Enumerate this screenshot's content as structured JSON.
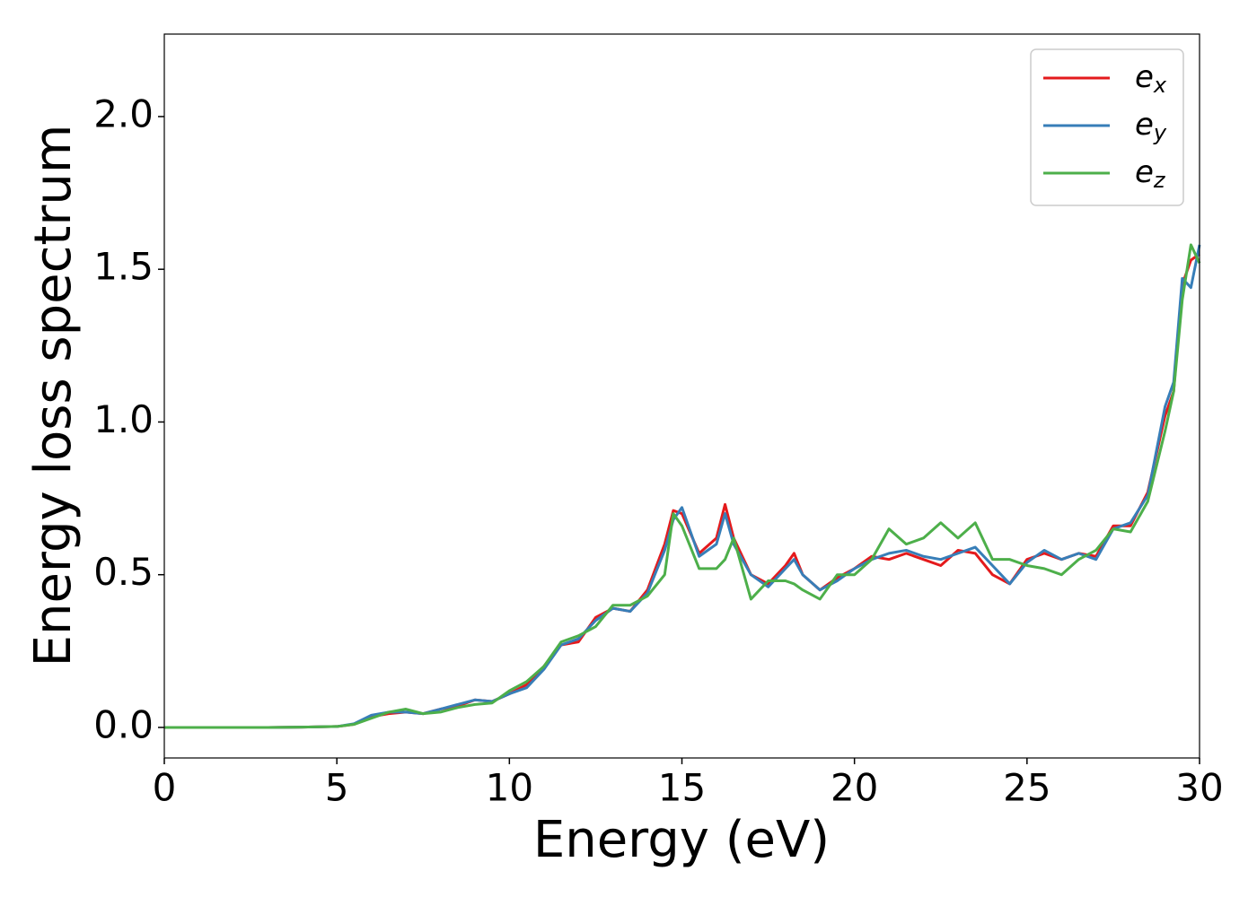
{
  "chart_data": {
    "type": "line",
    "xlabel": "Energy (eV)",
    "ylabel": "Energy loss spectrum",
    "xlim": [
      0,
      30
    ],
    "ylim": [
      -0.1,
      2.27
    ],
    "xticks": [
      0,
      5,
      10,
      15,
      20,
      25,
      30
    ],
    "yticks": [
      {
        "value": 0,
        "label": "0.0"
      },
      0.5,
      {
        "value": 1,
        "label": "1.0"
      },
      1.5,
      {
        "value": 2,
        "label": "2.0"
      }
    ],
    "legend": "upper right",
    "x": [
      0,
      1,
      2,
      3,
      4,
      4.5,
      5,
      5.5,
      6,
      6.5,
      7,
      7.5,
      8,
      8.5,
      9,
      9.5,
      10,
      10.5,
      11,
      11.5,
      12,
      12.5,
      13,
      13.5,
      14,
      14.5,
      14.75,
      15,
      15.5,
      16,
      16.25,
      16.5,
      17,
      17.5,
      18,
      18.25,
      18.5,
      19,
      19.5,
      20,
      20.5,
      21,
      21.5,
      22,
      22.5,
      23,
      23.5,
      24,
      24.5,
      25,
      25.5,
      26,
      26.5,
      27,
      27.5,
      28,
      28.5,
      29,
      29.25,
      29.5,
      29.75,
      30
    ],
    "series": [
      {
        "name": "e_x",
        "color": "#e41a1c",
        "values": [
          0,
          0,
          0,
          0,
          0.001,
          0.002,
          0.003,
          0.01,
          0.035,
          0.045,
          0.05,
          0.045,
          0.06,
          0.07,
          0.09,
          0.085,
          0.11,
          0.14,
          0.2,
          0.27,
          0.28,
          0.36,
          0.39,
          0.38,
          0.45,
          0.6,
          0.71,
          0.7,
          0.57,
          0.62,
          0.73,
          0.62,
          0.5,
          0.47,
          0.53,
          0.57,
          0.5,
          0.45,
          0.49,
          0.52,
          0.56,
          0.55,
          0.57,
          0.55,
          0.53,
          0.58,
          0.57,
          0.5,
          0.47,
          0.55,
          0.57,
          0.55,
          0.57,
          0.56,
          0.66,
          0.66,
          0.77,
          1.02,
          1.1,
          1.45,
          1.53,
          1.55
        ]
      },
      {
        "name": "e_y",
        "color": "#377eb8",
        "values": [
          0,
          0,
          0,
          0,
          0.001,
          0.002,
          0.003,
          0.012,
          0.04,
          0.05,
          0.05,
          0.045,
          0.06,
          0.075,
          0.09,
          0.085,
          0.11,
          0.13,
          0.19,
          0.27,
          0.29,
          0.35,
          0.39,
          0.38,
          0.44,
          0.58,
          0.68,
          0.72,
          0.56,
          0.6,
          0.7,
          0.6,
          0.5,
          0.46,
          0.52,
          0.55,
          0.5,
          0.45,
          0.48,
          0.52,
          0.55,
          0.57,
          0.58,
          0.56,
          0.55,
          0.57,
          0.59,
          0.53,
          0.47,
          0.54,
          0.58,
          0.55,
          0.57,
          0.55,
          0.65,
          0.67,
          0.76,
          1.05,
          1.13,
          1.47,
          1.44,
          1.58
        ]
      },
      {
        "name": "e_z",
        "color": "#4daf4a",
        "values": [
          0,
          0,
          0,
          0,
          0.001,
          0.002,
          0.003,
          0.01,
          0.03,
          0.05,
          0.06,
          0.045,
          0.05,
          0.065,
          0.075,
          0.08,
          0.12,
          0.15,
          0.2,
          0.28,
          0.3,
          0.33,
          0.4,
          0.4,
          0.43,
          0.5,
          0.7,
          0.66,
          0.52,
          0.52,
          0.55,
          0.62,
          0.42,
          0.48,
          0.48,
          0.47,
          0.45,
          0.42,
          0.5,
          0.5,
          0.55,
          0.65,
          0.6,
          0.62,
          0.67,
          0.62,
          0.67,
          0.55,
          0.55,
          0.53,
          0.52,
          0.5,
          0.55,
          0.58,
          0.65,
          0.64,
          0.74,
          0.97,
          1.1,
          1.4,
          1.58,
          1.52
        ]
      }
    ]
  }
}
